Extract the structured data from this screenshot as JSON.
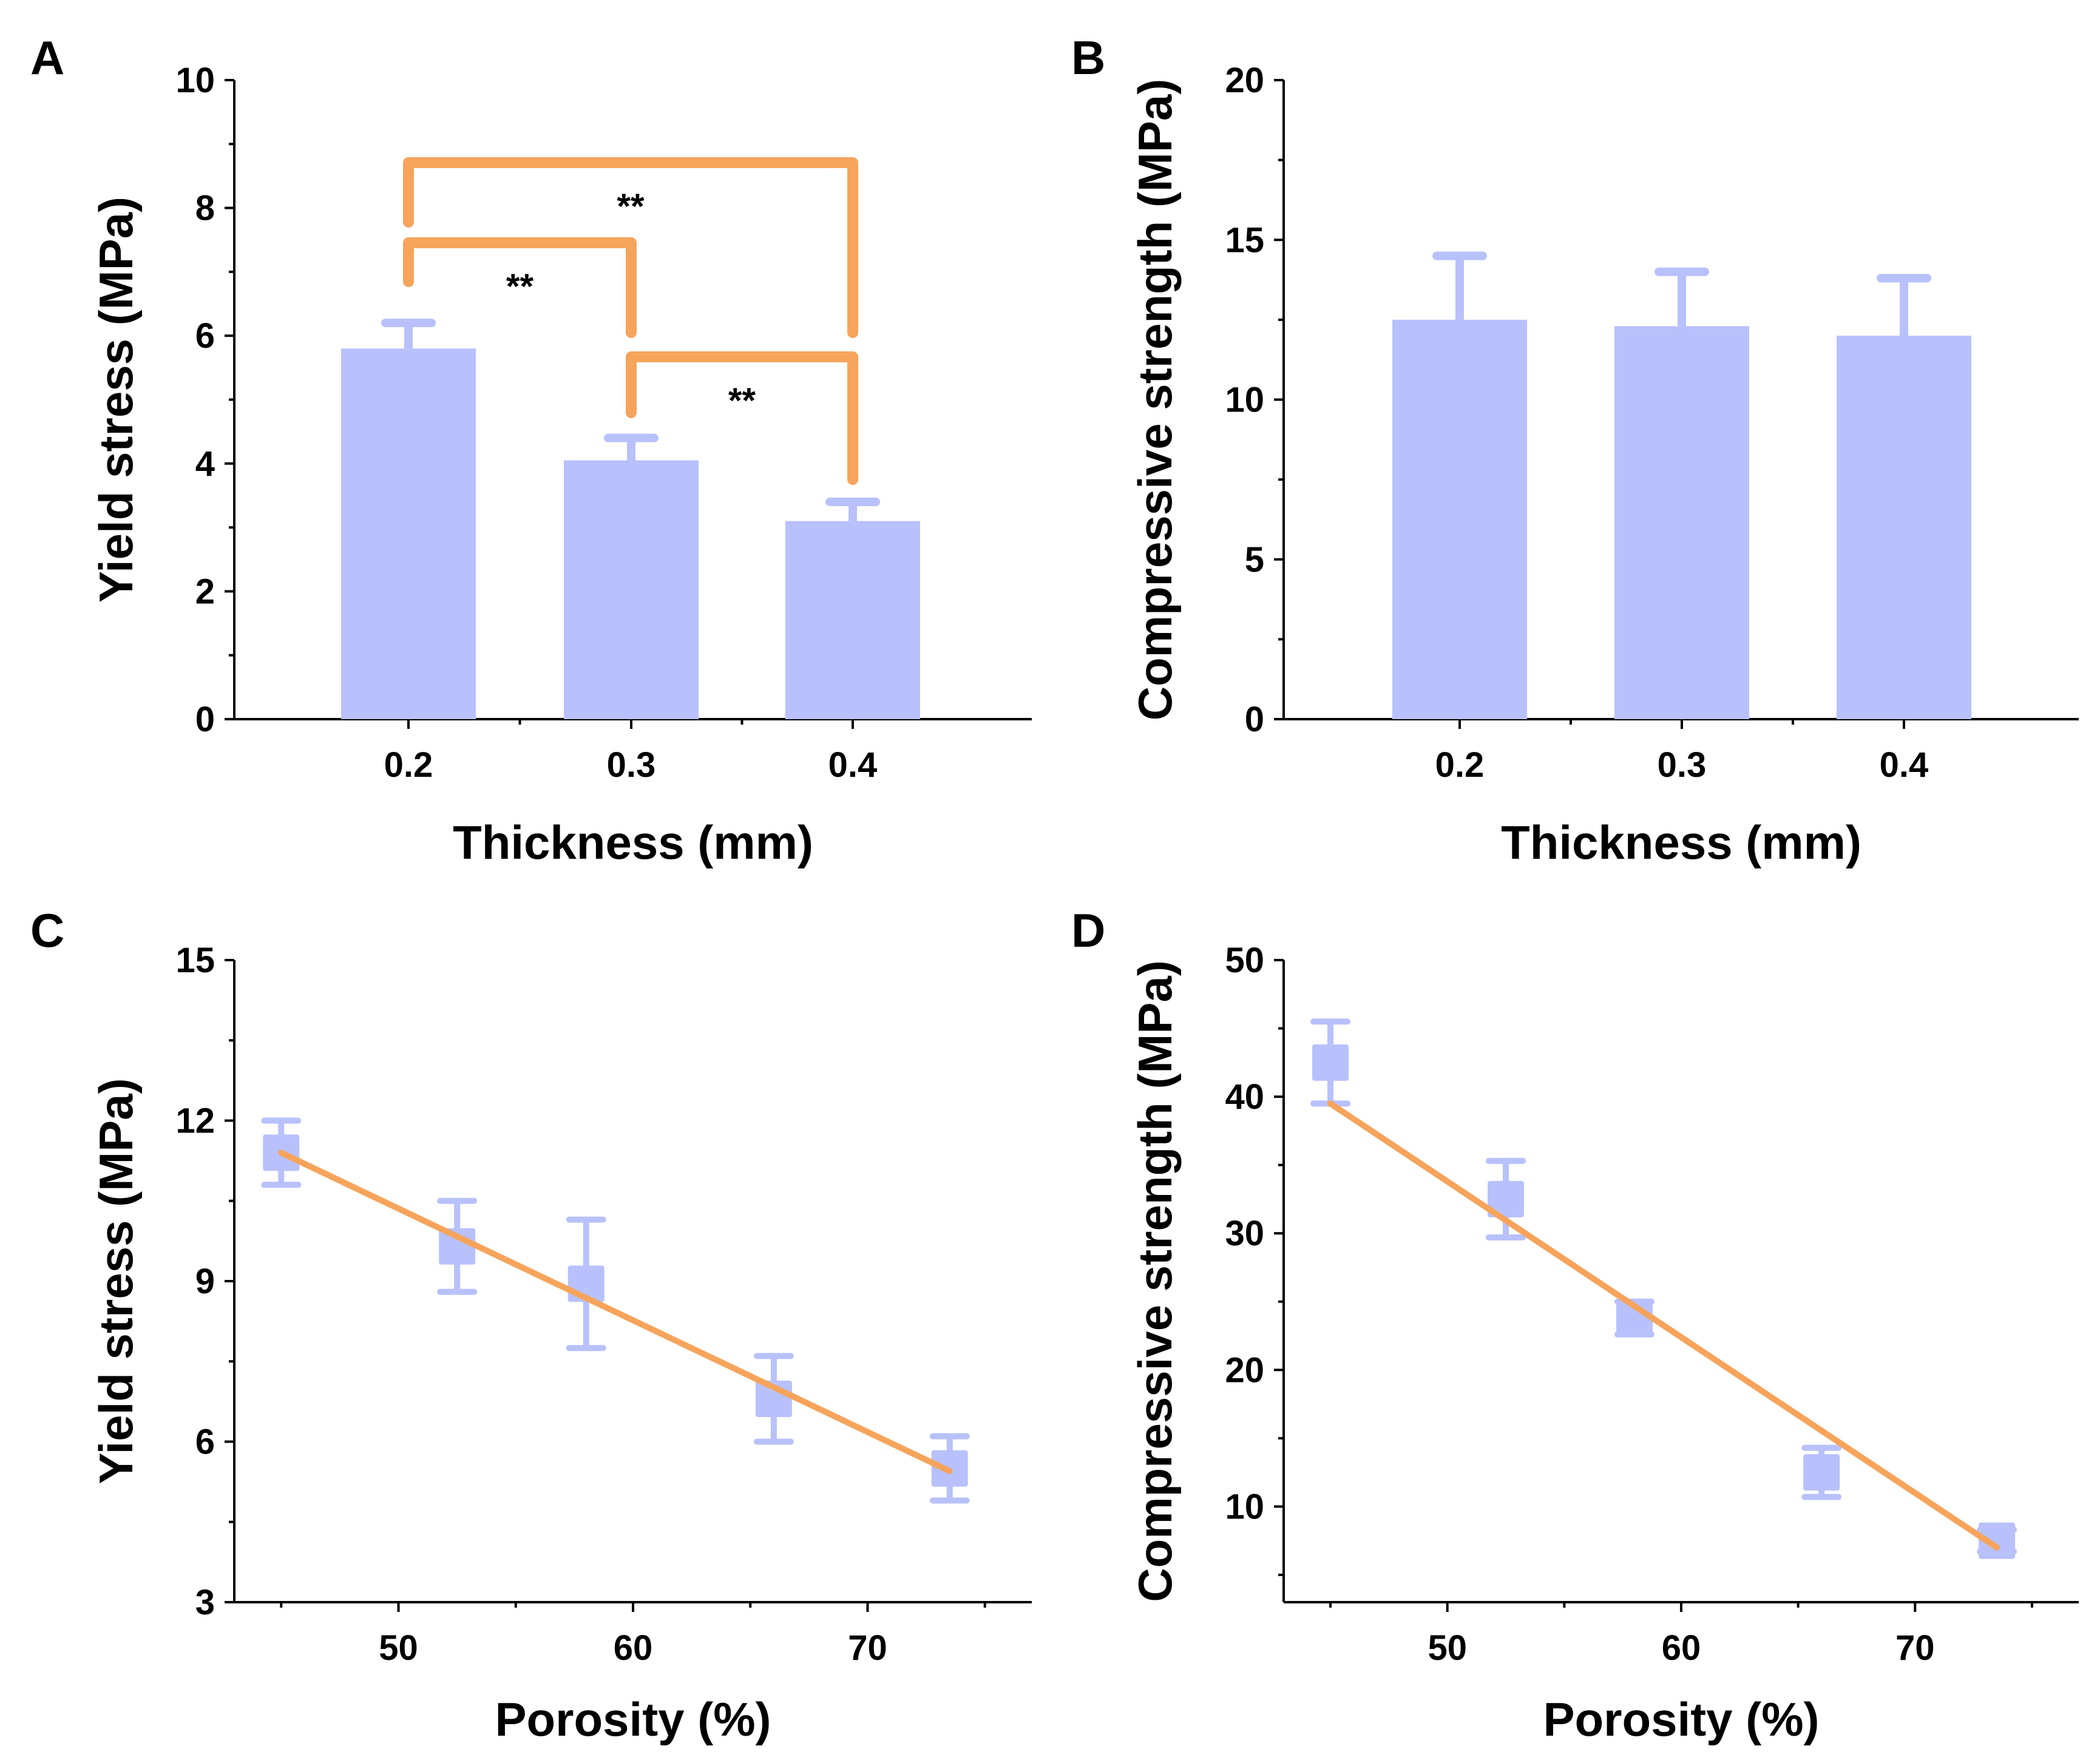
{
  "colors": {
    "bar": "#b8c1fb",
    "marker": "#b8c1fb",
    "fit_line": "#f6a45c",
    "bracket": "#f6a45c",
    "axis": "#000000"
  },
  "chart_data": [
    {
      "id": "A",
      "panel_label": "A",
      "type": "bar",
      "categories": [
        "0.2",
        "0.3",
        "0.4"
      ],
      "values": [
        5.8,
        4.05,
        3.1
      ],
      "errors": [
        0.4,
        0.35,
        0.3
      ],
      "xlabel": "Thickness (mm)",
      "ylabel": "Yield stress (MPa)",
      "ylim": [
        0,
        10
      ],
      "yticks": [
        0,
        2,
        4,
        6,
        8,
        10
      ],
      "ytick_labels": [
        "0",
        "2",
        "4",
        "6",
        "8",
        "10"
      ],
      "significance": [
        {
          "from": 0,
          "to": 1,
          "label": "**"
        },
        {
          "from": 1,
          "to": 2,
          "label": "**"
        },
        {
          "from": 0,
          "to": 2,
          "label": "**"
        }
      ]
    },
    {
      "id": "B",
      "panel_label": "B",
      "type": "bar",
      "categories": [
        "0.2",
        "0.3",
        "0.4"
      ],
      "values": [
        12.5,
        12.3,
        12.0
      ],
      "errors": [
        2.0,
        1.7,
        1.8
      ],
      "xlabel": "Thickness (mm)",
      "ylabel": "Compressive strength (MPa)",
      "ylim": [
        0,
        20
      ],
      "yticks": [
        0,
        5,
        10,
        15,
        20
      ],
      "ytick_labels": [
        "0",
        "5",
        "10",
        "15",
        "20"
      ]
    },
    {
      "id": "C",
      "panel_label": "C",
      "type": "scatter",
      "x": [
        45,
        52.5,
        58,
        66,
        73.5
      ],
      "y": [
        11.4,
        9.65,
        8.95,
        6.8,
        5.5
      ],
      "errors": [
        0.6,
        0.85,
        1.2,
        0.8,
        0.6
      ],
      "fit": {
        "x": [
          45,
          73.5
        ],
        "y": [
          11.4,
          5.45
        ]
      },
      "xlabel": "Porosity (%)",
      "ylabel": "Yield stress (MPa)",
      "xlim": [
        43,
        77
      ],
      "ylim": [
        3,
        15
      ],
      "xticks": [
        50,
        60,
        70
      ],
      "xtick_labels": [
        "50",
        "60",
        "70"
      ],
      "yticks": [
        3,
        6,
        9,
        12,
        15
      ],
      "ytick_labels": [
        "3",
        "6",
        "9",
        "12",
        "15"
      ]
    },
    {
      "id": "D",
      "panel_label": "D",
      "type": "scatter",
      "x": [
        45,
        52.5,
        58,
        66,
        73.5
      ],
      "y": [
        42.5,
        32.5,
        23.8,
        12.5,
        7.5
      ],
      "errors": [
        3.0,
        2.8,
        1.2,
        1.8,
        0.8
      ],
      "fit": {
        "x": [
          45,
          73.5
        ],
        "y": [
          39.5,
          7.0
        ]
      },
      "xlabel": "Porosity (%)",
      "ylabel": "Compressive strength (MPa)",
      "xlim": [
        43,
        77
      ],
      "ylim": [
        3,
        50
      ],
      "xticks": [
        50,
        60,
        70
      ],
      "xtick_labels": [
        "50",
        "60",
        "70"
      ],
      "yticks": [
        10,
        20,
        30,
        40,
        50
      ],
      "ytick_labels": [
        "10",
        "20",
        "30",
        "40",
        "50"
      ]
    }
  ]
}
